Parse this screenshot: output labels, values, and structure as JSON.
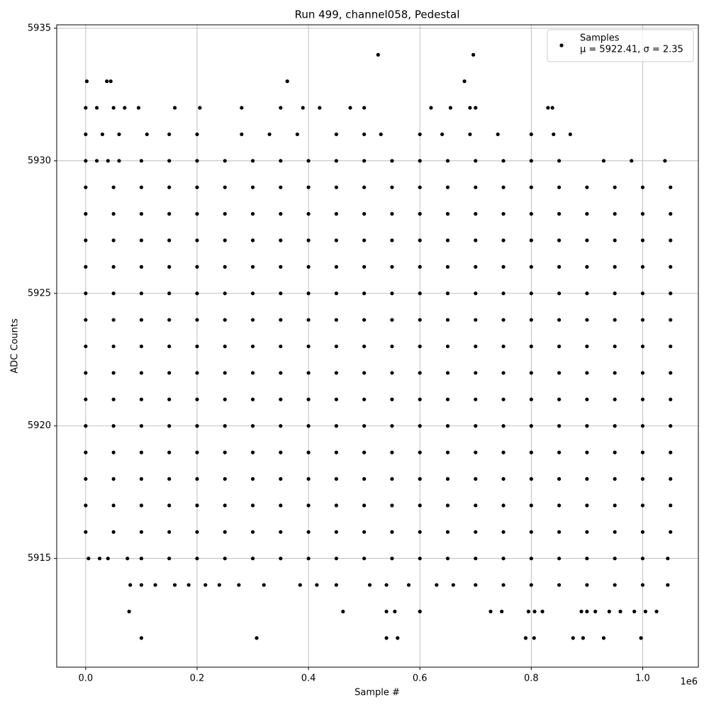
{
  "chart_data": {
    "type": "scatter",
    "title": "Run 499, channel058, Pedestal",
    "xlabel": "Sample #",
    "ylabel": "ADC Counts",
    "x_offset_label": "1e6",
    "xlim": [
      -52000,
      1100000
    ],
    "ylim": [
      5910.9,
      5935.13
    ],
    "xticks": [
      {
        "value": 0,
        "label": "0.0"
      },
      {
        "value": 200000,
        "label": "0.2"
      },
      {
        "value": 400000,
        "label": "0.4"
      },
      {
        "value": 600000,
        "label": "0.6"
      },
      {
        "value": 800000,
        "label": "0.8"
      },
      {
        "value": 1000000,
        "label": "1.0"
      }
    ],
    "yticks": [
      5915,
      5920,
      5925,
      5930,
      5935
    ],
    "grid": true,
    "legend": "upper right",
    "legend_note": "μ = 5922.41, σ = 2.35",
    "series": [
      {
        "name": "Samples",
        "color": "#000000",
        "x": [
          525000,
          696000,
          2000,
          38000,
          45000,
          362000,
          680000,
          0,
          20000,
          50000,
          70000,
          95000,
          160000,
          205000,
          280000,
          350000,
          390000,
          420000,
          475000,
          500000,
          620000,
          655000,
          690000,
          700000,
          830000,
          838000,
          0,
          30000,
          60000,
          110000,
          150000,
          200000,
          280000,
          330000,
          380000,
          450000,
          500000,
          530000,
          600000,
          640000,
          690000,
          740000,
          800000,
          840000,
          870000,
          0,
          20000,
          40000,
          60000,
          100000,
          150000,
          200000,
          250000,
          300000,
          350000,
          400000,
          450000,
          500000,
          550000,
          600000,
          650000,
          700000,
          750000,
          800000,
          850000,
          930000,
          980000,
          1040000,
          0,
          50000,
          100000,
          150000,
          200000,
          250000,
          300000,
          350000,
          400000,
          450000,
          500000,
          550000,
          600000,
          650000,
          700000,
          750000,
          800000,
          850000,
          900000,
          950000,
          1000000,
          1050000,
          0,
          50000,
          100000,
          150000,
          200000,
          250000,
          300000,
          350000,
          400000,
          450000,
          500000,
          550000,
          600000,
          650000,
          700000,
          750000,
          800000,
          850000,
          900000,
          950000,
          1000000,
          1050000,
          0,
          50000,
          100000,
          150000,
          200000,
          250000,
          300000,
          350000,
          400000,
          450000,
          500000,
          550000,
          600000,
          650000,
          700000,
          750000,
          800000,
          850000,
          900000,
          950000,
          1000000,
          1050000,
          0,
          50000,
          100000,
          150000,
          200000,
          250000,
          300000,
          350000,
          400000,
          450000,
          500000,
          550000,
          600000,
          650000,
          700000,
          750000,
          800000,
          850000,
          900000,
          950000,
          1000000,
          1050000,
          0,
          50000,
          100000,
          150000,
          200000,
          250000,
          300000,
          350000,
          400000,
          450000,
          500000,
          550000,
          600000,
          650000,
          700000,
          750000,
          800000,
          850000,
          900000,
          950000,
          1000000,
          1050000,
          0,
          50000,
          100000,
          150000,
          200000,
          250000,
          300000,
          350000,
          400000,
          450000,
          500000,
          550000,
          600000,
          650000,
          700000,
          750000,
          800000,
          850000,
          900000,
          950000,
          1000000,
          1050000,
          0,
          50000,
          100000,
          150000,
          200000,
          250000,
          300000,
          350000,
          400000,
          450000,
          500000,
          550000,
          600000,
          650000,
          700000,
          750000,
          800000,
          850000,
          900000,
          950000,
          1000000,
          1050000,
          0,
          50000,
          100000,
          150000,
          200000,
          250000,
          300000,
          350000,
          400000,
          450000,
          500000,
          550000,
          600000,
          650000,
          700000,
          750000,
          800000,
          850000,
          900000,
          950000,
          1000000,
          1050000,
          0,
          50000,
          100000,
          150000,
          200000,
          250000,
          300000,
          350000,
          400000,
          450000,
          500000,
          550000,
          600000,
          650000,
          700000,
          750000,
          800000,
          850000,
          900000,
          950000,
          1000000,
          1050000,
          0,
          50000,
          100000,
          150000,
          200000,
          250000,
          300000,
          350000,
          400000,
          450000,
          500000,
          550000,
          600000,
          650000,
          700000,
          750000,
          800000,
          850000,
          900000,
          950000,
          1000000,
          1050000,
          0,
          50000,
          100000,
          150000,
          200000,
          250000,
          300000,
          350000,
          400000,
          450000,
          500000,
          550000,
          600000,
          650000,
          700000,
          750000,
          800000,
          850000,
          900000,
          950000,
          1000000,
          1050000,
          0,
          50000,
          100000,
          150000,
          200000,
          250000,
          300000,
          350000,
          400000,
          450000,
          500000,
          550000,
          600000,
          650000,
          700000,
          750000,
          800000,
          850000,
          900000,
          950000,
          1000000,
          1050000,
          0,
          50000,
          100000,
          150000,
          200000,
          250000,
          300000,
          350000,
          400000,
          450000,
          500000,
          550000,
          600000,
          650000,
          700000,
          750000,
          800000,
          850000,
          900000,
          950000,
          1000000,
          1050000,
          0,
          50000,
          100000,
          150000,
          200000,
          250000,
          300000,
          350000,
          400000,
          450000,
          500000,
          550000,
          600000,
          650000,
          700000,
          750000,
          800000,
          850000,
          900000,
          950000,
          1000000,
          1050000,
          5000,
          25000,
          40000,
          75000,
          100000,
          150000,
          200000,
          250000,
          300000,
          350000,
          400000,
          450000,
          500000,
          550000,
          600000,
          650000,
          700000,
          750000,
          800000,
          850000,
          900000,
          950000,
          1000000,
          1045000,
          80000,
          100000,
          125000,
          160000,
          185000,
          215000,
          240000,
          275000,
          320000,
          385000,
          415000,
          450000,
          510000,
          540000,
          580000,
          630000,
          660000,
          700000,
          750000,
          800000,
          850000,
          900000,
          950000,
          1000000,
          1045000,
          78000,
          462000,
          540000,
          555000,
          600000,
          727000,
          747000,
          795000,
          806000,
          820000,
          890000,
          900000,
          915000,
          940000,
          960000,
          985000,
          1005000,
          1025000,
          100000,
          307000,
          540000,
          560000,
          790000,
          805000,
          875000,
          893000,
          930000,
          997000
        ],
        "y": [
          5934,
          5934,
          5933,
          5933,
          5933,
          5933,
          5933,
          5932,
          5932,
          5932,
          5932,
          5932,
          5932,
          5932,
          5932,
          5932,
          5932,
          5932,
          5932,
          5932,
          5932,
          5932,
          5932,
          5932,
          5932,
          5932,
          5931,
          5931,
          5931,
          5931,
          5931,
          5931,
          5931,
          5931,
          5931,
          5931,
          5931,
          5931,
          5931,
          5931,
          5931,
          5931,
          5931,
          5931,
          5931,
          5930,
          5930,
          5930,
          5930,
          5930,
          5930,
          5930,
          5930,
          5930,
          5930,
          5930,
          5930,
          5930,
          5930,
          5930,
          5930,
          5930,
          5930,
          5930,
          5930,
          5930,
          5930,
          5930,
          5929,
          5929,
          5929,
          5929,
          5929,
          5929,
          5929,
          5929,
          5929,
          5929,
          5929,
          5929,
          5929,
          5929,
          5929,
          5929,
          5929,
          5929,
          5929,
          5929,
          5929,
          5929,
          5928,
          5928,
          5928,
          5928,
          5928,
          5928,
          5928,
          5928,
          5928,
          5928,
          5928,
          5928,
          5928,
          5928,
          5928,
          5928,
          5928,
          5928,
          5928,
          5928,
          5928,
          5928,
          5927,
          5927,
          5927,
          5927,
          5927,
          5927,
          5927,
          5927,
          5927,
          5927,
          5927,
          5927,
          5927,
          5927,
          5927,
          5927,
          5927,
          5927,
          5927,
          5927,
          5927,
          5927,
          5926,
          5926,
          5926,
          5926,
          5926,
          5926,
          5926,
          5926,
          5926,
          5926,
          5926,
          5926,
          5926,
          5926,
          5926,
          5926,
          5926,
          5926,
          5926,
          5926,
          5926,
          5926,
          5925,
          5925,
          5925,
          5925,
          5925,
          5925,
          5925,
          5925,
          5925,
          5925,
          5925,
          5925,
          5925,
          5925,
          5925,
          5925,
          5925,
          5925,
          5925,
          5925,
          5925,
          5925,
          5924,
          5924,
          5924,
          5924,
          5924,
          5924,
          5924,
          5924,
          5924,
          5924,
          5924,
          5924,
          5924,
          5924,
          5924,
          5924,
          5924,
          5924,
          5924,
          5924,
          5924,
          5924,
          5923,
          5923,
          5923,
          5923,
          5923,
          5923,
          5923,
          5923,
          5923,
          5923,
          5923,
          5923,
          5923,
          5923,
          5923,
          5923,
          5923,
          5923,
          5923,
          5923,
          5923,
          5923,
          5922,
          5922,
          5922,
          5922,
          5922,
          5922,
          5922,
          5922,
          5922,
          5922,
          5922,
          5922,
          5922,
          5922,
          5922,
          5922,
          5922,
          5922,
          5922,
          5922,
          5922,
          5922,
          5921,
          5921,
          5921,
          5921,
          5921,
          5921,
          5921,
          5921,
          5921,
          5921,
          5921,
          5921,
          5921,
          5921,
          5921,
          5921,
          5921,
          5921,
          5921,
          5921,
          5921,
          5921,
          5920,
          5920,
          5920,
          5920,
          5920,
          5920,
          5920,
          5920,
          5920,
          5920,
          5920,
          5920,
          5920,
          5920,
          5920,
          5920,
          5920,
          5920,
          5920,
          5920,
          5920,
          5920,
          5919,
          5919,
          5919,
          5919,
          5919,
          5919,
          5919,
          5919,
          5919,
          5919,
          5919,
          5919,
          5919,
          5919,
          5919,
          5919,
          5919,
          5919,
          5919,
          5919,
          5919,
          5919,
          5918,
          5918,
          5918,
          5918,
          5918,
          5918,
          5918,
          5918,
          5918,
          5918,
          5918,
          5918,
          5918,
          5918,
          5918,
          5918,
          5918,
          5918,
          5918,
          5918,
          5918,
          5918,
          5917,
          5917,
          5917,
          5917,
          5917,
          5917,
          5917,
          5917,
          5917,
          5917,
          5917,
          5917,
          5917,
          5917,
          5917,
          5917,
          5917,
          5917,
          5917,
          5917,
          5917,
          5917,
          5916,
          5916,
          5916,
          5916,
          5916,
          5916,
          5916,
          5916,
          5916,
          5916,
          5916,
          5916,
          5916,
          5916,
          5916,
          5916,
          5916,
          5916,
          5916,
          5916,
          5916,
          5916,
          5915,
          5915,
          5915,
          5915,
          5915,
          5915,
          5915,
          5915,
          5915,
          5915,
          5915,
          5915,
          5915,
          5915,
          5915,
          5915,
          5915,
          5915,
          5915,
          5915,
          5915,
          5915,
          5915,
          5915,
          5914,
          5914,
          5914,
          5914,
          5914,
          5914,
          5914,
          5914,
          5914,
          5914,
          5914,
          5914,
          5914,
          5914,
          5914,
          5914,
          5914,
          5914,
          5914,
          5914,
          5914,
          5914,
          5914,
          5914,
          5914,
          5913,
          5913,
          5913,
          5913,
          5913,
          5913,
          5913,
          5913,
          5913,
          5913,
          5913,
          5913,
          5913,
          5913,
          5913,
          5913,
          5913,
          5913,
          5912,
          5912,
          5912,
          5912,
          5912,
          5912,
          5912,
          5912,
          5912,
          5912
        ]
      }
    ]
  }
}
